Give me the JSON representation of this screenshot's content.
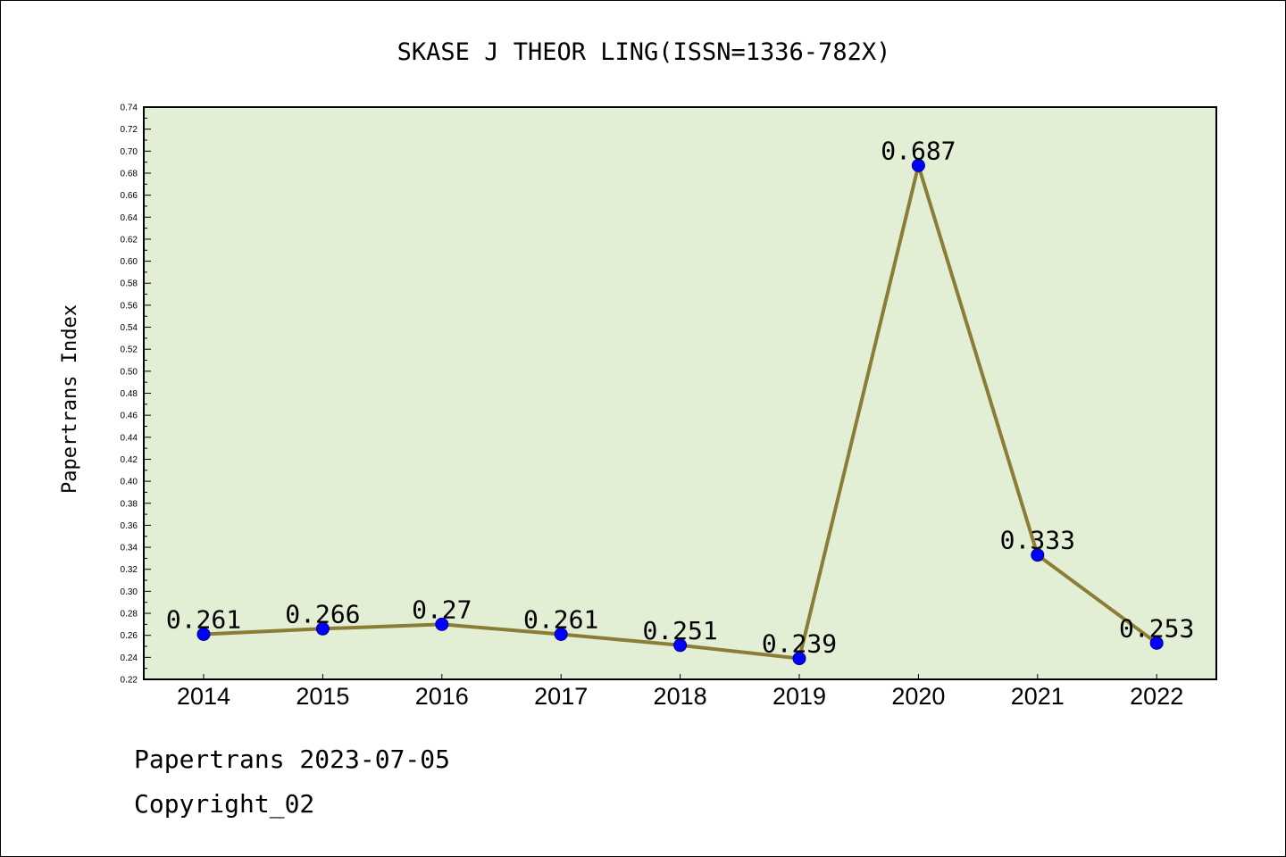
{
  "chart_data": {
    "type": "line",
    "title": "SKASE J THEOR LING(ISSN=1336-782X)",
    "xlabel": "",
    "ylabel": "Papertrans Index",
    "categories": [
      "2014",
      "2015",
      "2016",
      "2017",
      "2018",
      "2019",
      "2020",
      "2021",
      "2022"
    ],
    "series": [
      {
        "values": [
          0.261,
          0.266,
          0.27,
          0.261,
          0.251,
          0.239,
          0.687,
          0.333,
          0.253
        ],
        "labels": [
          "0.261",
          "0.266",
          "0.27",
          "0.261",
          "0.251",
          "0.239",
          "0.687",
          "0.333",
          "0.253"
        ]
      }
    ],
    "ylim": [
      0.22,
      0.74
    ],
    "yticks": [
      "0.22",
      "0.24",
      "0.26",
      "0.28",
      "0.30",
      "0.32",
      "0.34",
      "0.36",
      "0.38",
      "0.40",
      "0.42",
      "0.44",
      "0.46",
      "0.48",
      "0.50",
      "0.52",
      "0.54",
      "0.56",
      "0.58",
      "0.60",
      "0.62",
      "0.64",
      "0.66",
      "0.68",
      "0.70",
      "0.72",
      "0.74"
    ],
    "grid": false,
    "legend": "none",
    "colors": {
      "plot_background": "#e2efd5",
      "line": "#8b7d36",
      "marker": "#0000ff",
      "marker_edge": "#000080"
    }
  },
  "footer": {
    "line1": "Papertrans 2023-07-05",
    "line2": "Copyright_02"
  }
}
